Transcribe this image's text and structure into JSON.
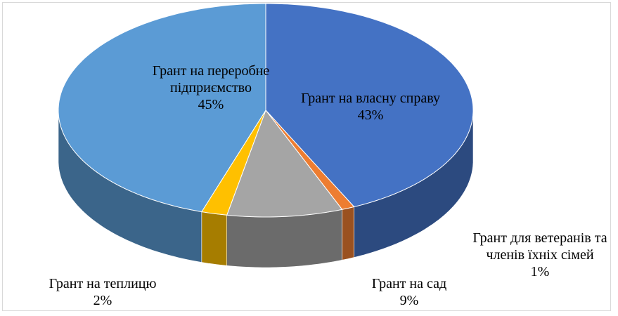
{
  "chart_data": {
    "type": "pie",
    "categories": [
      "Грант на власну справу",
      "Грант для ветеранів та членів їхніх сімей",
      "Грант на сад",
      "Грант на теплицю",
      "Грант на переробне підприємство"
    ],
    "values": [
      43,
      1,
      9,
      2,
      45
    ],
    "value_labels": [
      "43%",
      "1%",
      "9%",
      "2%",
      "45%"
    ],
    "colors": [
      "#4472c4",
      "#ed7d31",
      "#a5a5a5",
      "#ffc000",
      "#5b9bd5"
    ]
  }
}
